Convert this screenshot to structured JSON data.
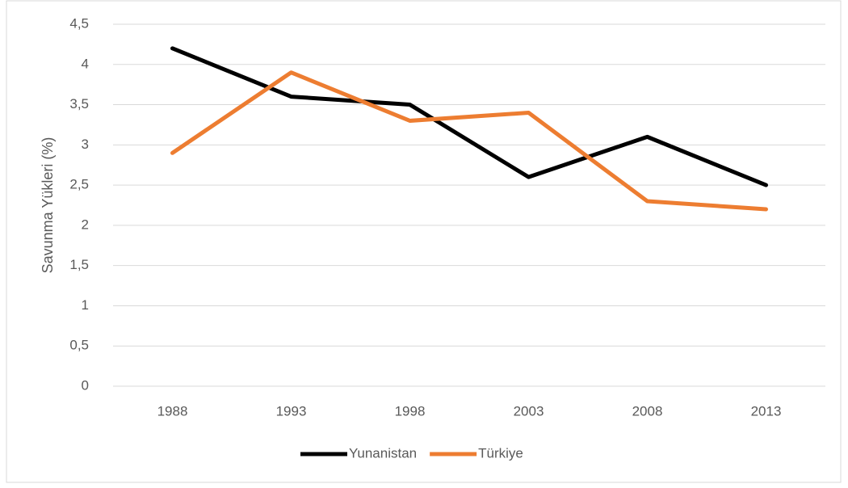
{
  "chart_data": {
    "type": "line",
    "ylabel": "Savunma Yükleri (%)",
    "categories": [
      "1988",
      "1993",
      "1998",
      "2003",
      "2008",
      "2013"
    ],
    "series": [
      {
        "name": "Yunanistan",
        "color": "#000000",
        "values": [
          4.2,
          3.6,
          3.5,
          2.6,
          3.1,
          2.5
        ]
      },
      {
        "name": "Türkiye",
        "color": "#ed7d31",
        "values": [
          2.9,
          3.9,
          3.3,
          3.4,
          2.3,
          2.2
        ]
      }
    ],
    "ylim": [
      0,
      4.5
    ],
    "yticks": [
      0,
      {
        "value": 0.5,
        "label": "0,5"
      },
      1,
      {
        "value": 1.5,
        "label": "1,5"
      },
      2,
      {
        "value": 2.5,
        "label": "2,5"
      },
      3,
      {
        "value": 3.5,
        "label": "3,5"
      },
      4,
      {
        "value": 4.5,
        "label": "4,5"
      }
    ],
    "grid": true,
    "legend": "bottom"
  }
}
